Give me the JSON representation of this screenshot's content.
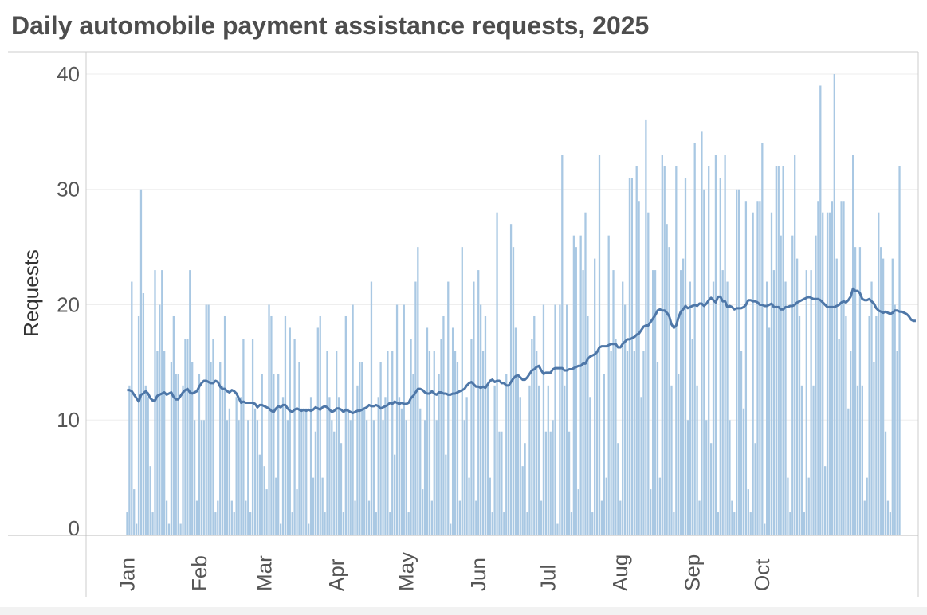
{
  "chart_data": {
    "type": "bar",
    "title": "Daily automobile payment assistance requests, 2025",
    "xlabel": "",
    "ylabel": "Requests",
    "ylim": [
      0,
      40
    ],
    "yticks": [
      0,
      10,
      20,
      30,
      40
    ],
    "x_start": "2025-01-01",
    "x_end": "2025-10-31",
    "month_labels": [
      "Jan",
      "Feb",
      "Mar",
      "Apr",
      "May",
      "Jun",
      "Jul",
      "Aug",
      "Sep",
      "Oct"
    ],
    "grid": true,
    "colors": {
      "bars": "#a9c8e3",
      "line": "#4e77a8",
      "text": "#555555",
      "grid": "#eeeeee",
      "axis": "#cccccc"
    },
    "series": [
      {
        "type": "bar",
        "values": [
          2,
          13,
          22,
          4,
          1,
          19,
          30,
          21,
          13,
          12,
          6,
          2,
          23,
          16,
          20,
          23,
          16,
          3,
          1,
          15,
          19,
          14,
          14,
          1,
          13,
          17,
          17,
          23,
          15,
          10,
          3,
          14,
          10,
          10,
          20,
          20,
          15,
          17,
          2,
          3,
          15,
          13,
          19,
          10,
          11,
          3,
          2,
          12,
          10,
          12,
          17,
          3,
          10,
          2,
          17,
          11,
          10,
          7,
          14,
          6,
          4,
          20,
          19,
          14,
          5,
          14,
          1,
          12,
          19,
          10,
          18,
          2,
          17,
          4,
          15,
          11,
          11,
          11,
          1,
          12,
          5,
          9,
          18,
          19,
          5,
          2,
          16,
          12,
          10,
          9,
          16,
          12,
          8,
          2,
          19,
          11,
          10,
          20,
          3,
          13,
          15,
          15,
          11,
          10,
          3,
          22,
          10,
          2,
          12,
          15,
          10,
          12,
          16,
          2,
          16,
          7,
          20,
          12,
          11,
          20,
          10,
          2,
          17,
          14,
          22,
          25,
          11,
          4,
          10,
          18,
          16,
          3,
          16,
          10,
          14,
          17,
          19,
          7,
          22,
          1,
          18,
          16,
          15,
          3,
          25,
          10,
          12,
          5,
          17,
          22,
          3,
          23,
          20,
          16,
          19,
          13,
          5,
          2,
          13,
          28,
          9,
          9,
          2,
          14,
          13,
          27,
          25,
          18,
          14,
          12,
          6,
          8,
          2,
          13,
          17,
          19,
          16,
          13,
          3,
          20,
          9,
          13,
          9,
          10,
          20,
          1,
          20,
          33,
          13,
          20,
          9,
          2,
          26,
          25,
          4,
          26,
          23,
          28,
          19,
          12,
          2,
          24,
          16,
          33,
          3,
          14,
          5,
          26,
          16,
          23,
          17,
          8,
          3,
          22,
          20,
          16,
          31,
          31,
          16,
          32,
          29,
          12,
          16,
          36,
          28,
          4,
          23,
          23,
          15,
          5,
          33,
          32,
          27,
          25,
          13,
          2,
          32,
          14,
          23,
          24,
          31,
          10,
          22,
          17,
          34,
          13,
          3,
          35,
          30,
          10,
          32,
          8,
          22,
          33,
          2,
          31,
          23,
          33,
          22,
          10,
          3,
          2,
          30,
          30,
          16,
          11,
          29,
          4,
          2,
          28,
          8,
          29,
          29,
          34,
          1,
          22,
          18,
          28,
          23,
          32,
          32,
          26,
          32,
          22,
          5,
          2,
          26,
          33,
          24,
          19,
          13,
          2,
          23,
          5,
          23,
          13,
          26,
          29,
          39,
          28,
          6,
          28,
          28,
          29,
          40,
          24,
          17,
          29,
          29,
          19,
          11,
          16,
          33,
          25,
          13,
          25,
          13,
          3,
          5,
          19,
          22,
          15,
          19,
          28,
          25,
          24,
          9,
          3,
          2,
          24,
          20,
          16,
          32
        ]
      },
      {
        "type": "line",
        "values": [
          12.6,
          12.6,
          12.5,
          12.2,
          11.9,
          11.6,
          12.2,
          12.3,
          12.5,
          12.3,
          11.9,
          11.7,
          11.7,
          12.1,
          12.2,
          12.3,
          12.4,
          12.2,
          12.3,
          12.4,
          12.0,
          11.8,
          11.8,
          12.1,
          12.4,
          12.6,
          12.7,
          12.4,
          12.3,
          12.4,
          12.5,
          12.9,
          13.2,
          13.4,
          13.4,
          13.3,
          13.2,
          13.2,
          13.4,
          13.3,
          12.9,
          12.7,
          12.7,
          12.5,
          12.4,
          12.6,
          12.5,
          12.3,
          11.9,
          11.5,
          11.6,
          11.5,
          11.5,
          11.5,
          11.5,
          11.4,
          11.1,
          11.3,
          11.3,
          11.2,
          11.1,
          11.0,
          10.8,
          10.7,
          11.0,
          11.2,
          11.1,
          11.3,
          11.3,
          11.0,
          10.8,
          10.7,
          10.9,
          11.0,
          10.9,
          10.8,
          10.9,
          10.8,
          10.9,
          10.8,
          10.9,
          11.1,
          11.0,
          10.9,
          11.1,
          11.2,
          11.1,
          10.9,
          10.7,
          10.8,
          11.0,
          11.0,
          10.9,
          10.7,
          10.9,
          10.8,
          10.7,
          10.6,
          10.7,
          10.8,
          10.8,
          10.9,
          11.0,
          11.1,
          11.3,
          11.2,
          11.2,
          11.3,
          11.2,
          11.0,
          11.1,
          11.2,
          11.3,
          11.5,
          11.4,
          11.6,
          11.5,
          11.4,
          11.5,
          11.4,
          11.4,
          11.5,
          11.9,
          12.1,
          12.4,
          12.7,
          12.7,
          12.6,
          12.4,
          12.3,
          12.3,
          12.5,
          12.3,
          12.2,
          12.4,
          12.4,
          12.3,
          12.3,
          12.2,
          12.2,
          12.3,
          12.3,
          12.4,
          12.5,
          12.6,
          12.7,
          13.0,
          13.2,
          13.3,
          13.1,
          12.9,
          12.9,
          12.8,
          12.9,
          12.8,
          13.1,
          13.4,
          13.5,
          13.3,
          13.4,
          13.4,
          13.2,
          13.2,
          13.0,
          13.0,
          13.3,
          13.6,
          13.8,
          13.9,
          13.7,
          13.5,
          13.5,
          13.7,
          14.0,
          14.3,
          14.4,
          14.6,
          14.7,
          14.3,
          14.0,
          14.1,
          14.1,
          14.1,
          14.4,
          14.5,
          14.5,
          14.5,
          14.5,
          14.3,
          14.3,
          14.4,
          14.4,
          14.5,
          14.6,
          14.7,
          14.7,
          14.9,
          14.9,
          15.3,
          15.5,
          15.6,
          15.7,
          15.9,
          16.3,
          16.4,
          16.4,
          16.4,
          16.5,
          16.6,
          16.6,
          16.6,
          16.3,
          16.3,
          16.6,
          16.8,
          17.0,
          17.0,
          17.1,
          17.2,
          17.4,
          17.5,
          17.8,
          18.1,
          18.2,
          18.2,
          18.5,
          18.8,
          19.1,
          19.5,
          19.6,
          19.5,
          19.5,
          19.3,
          19.0,
          18.3,
          18.0,
          18.2,
          18.9,
          19.4,
          19.6,
          19.9,
          19.7,
          19.8,
          19.9,
          20.0,
          19.9,
          20.1,
          20.1,
          19.9,
          20.1,
          20.4,
          20.6,
          20.4,
          20.2,
          20.7,
          20.7,
          20.3,
          20.3,
          19.8,
          19.9,
          19.8,
          19.6,
          19.7,
          19.7,
          19.7,
          19.8,
          20.0,
          20.4,
          20.4,
          20.3,
          20.3,
          20.2,
          20.0,
          20.0,
          19.9,
          19.9,
          20.0,
          20.1,
          19.8,
          19.8,
          19.8,
          19.6,
          19.6,
          19.8,
          19.8,
          19.9,
          19.9,
          20.0,
          20.2,
          20.3,
          20.4,
          20.5,
          20.6,
          20.7,
          20.6,
          20.5,
          20.5,
          20.5,
          20.4,
          20.2,
          20.0,
          19.8,
          19.8,
          19.8,
          19.8,
          19.9,
          20.0,
          20.2,
          20.3,
          20.2,
          20.4,
          20.7,
          21.4,
          21.2,
          21.2,
          21.0,
          20.5,
          20.4,
          20.4,
          20.5,
          20.3,
          20.1,
          19.7,
          19.5,
          19.4,
          19.3,
          19.4,
          19.3,
          19.2,
          19.3,
          19.5,
          19.5,
          19.4,
          19.4,
          19.3,
          19.2,
          19.0,
          18.7,
          18.6,
          18.6
        ]
      }
    ]
  }
}
